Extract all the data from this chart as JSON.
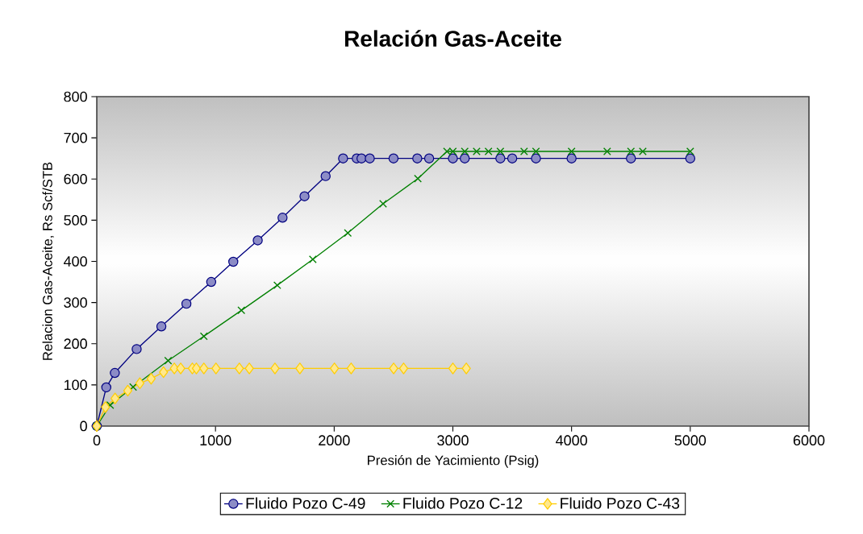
{
  "chart_data": {
    "type": "line",
    "title": "Relación Gas-Aceite",
    "xlabel": "Presión de Yacimiento (Psig)",
    "ylabel": "Relacion Gas-Aceite, Rs Scf/STB",
    "xlim": [
      0,
      6000
    ],
    "xticks": [
      0,
      1000,
      2000,
      3000,
      4000,
      5000,
      6000
    ],
    "ylim": [
      0,
      800
    ],
    "yticks": [
      0,
      100,
      200,
      300,
      400,
      500,
      600,
      700,
      800
    ],
    "grid": false,
    "legend": "bottom",
    "line_style": "solid",
    "series": [
      {
        "name": "Fluido Pozo C-49",
        "color": "#000080",
        "marker": "circle",
        "x": [
          0,
          80,
          152,
          336,
          544,
          755,
          964,
          1150,
          1356,
          1565,
          1750,
          1928,
          2075,
          2190,
          2230,
          2300,
          2500,
          2700,
          2800,
          3000,
          3100,
          3400,
          3500,
          3700,
          4000,
          4500,
          5000
        ],
        "values": [
          0,
          94,
          129,
          187,
          242,
          297,
          350,
          399,
          451,
          506,
          558,
          607,
          650,
          650,
          650,
          650,
          650,
          650,
          650,
          650,
          650,
          650,
          650,
          650,
          650,
          650,
          650
        ]
      },
      {
        "name": "Fluido Pozo C-12",
        "color": "#008000",
        "marker": "cross",
        "x": [
          0,
          113,
          306,
          601,
          902,
          1218,
          1521,
          1820,
          2115,
          2412,
          2705,
          2950,
          3000,
          3100,
          3200,
          3300,
          3400,
          3600,
          3700,
          4000,
          4300,
          4500,
          4600,
          5000
        ],
        "values": [
          0,
          51,
          95,
          159,
          218,
          281,
          342,
          405,
          469,
          540,
          601,
          667,
          667,
          667,
          667,
          667,
          667,
          667,
          667,
          667,
          667,
          667,
          667,
          667
        ]
      },
      {
        "name": "Fluido Pozo C-43",
        "color": "#ffcc00",
        "marker": "diamond",
        "x": [
          0,
          73,
          154,
          261,
          363,
          458,
          562,
          653,
          707,
          805,
          839,
          902,
          1004,
          1201,
          1285,
          1501,
          1711,
          2002,
          2143,
          2501,
          2585,
          3000,
          3113
        ],
        "values": [
          0,
          46,
          67,
          86,
          104,
          115,
          131,
          140,
          140,
          140,
          140,
          140,
          140,
          140,
          140,
          140,
          140,
          140,
          140,
          140,
          140,
          140,
          140
        ]
      }
    ]
  }
}
